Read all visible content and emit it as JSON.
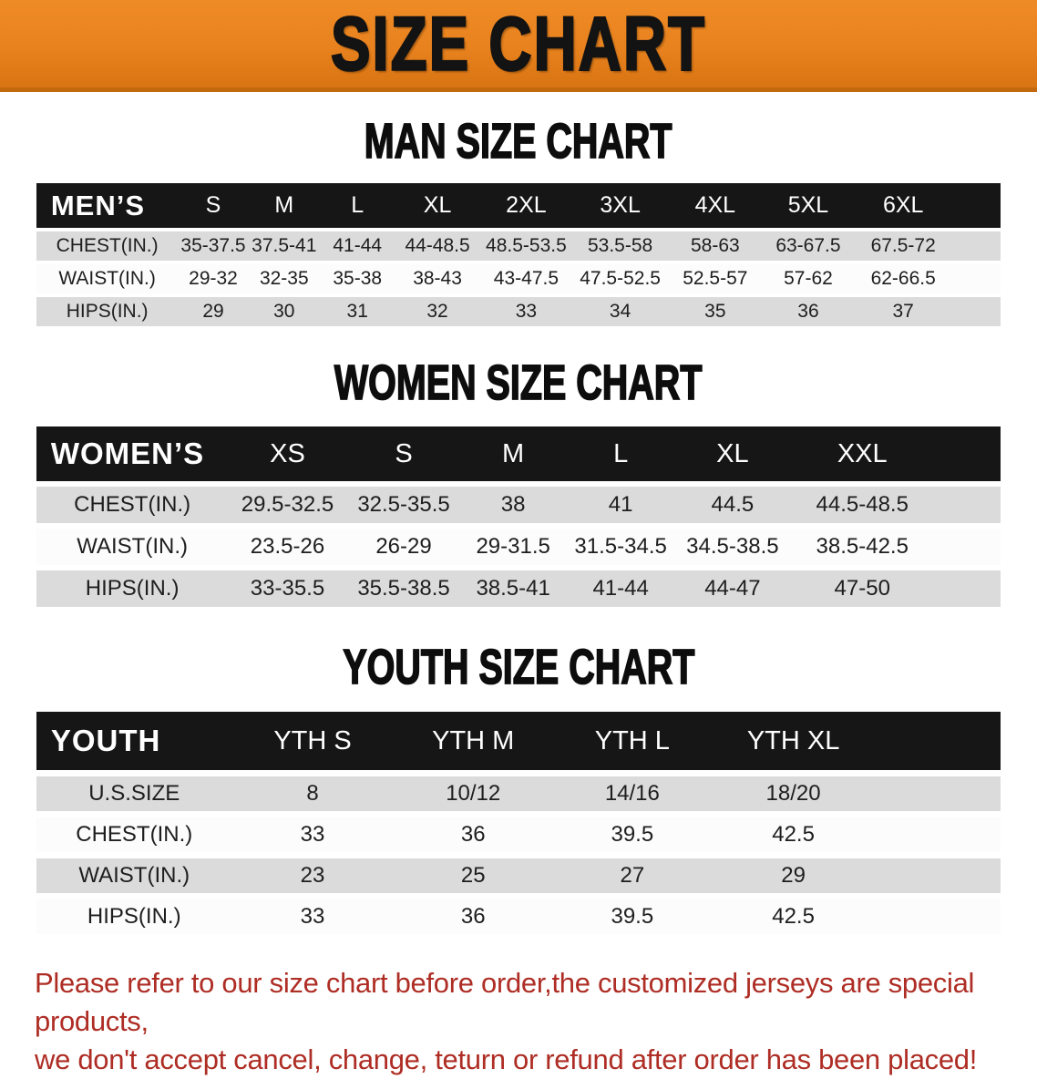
{
  "banner": {
    "title": "SIZE CHART"
  },
  "colors": {
    "banner_orange": "#e8821e",
    "banner_orange_light": "#ef8b26",
    "banner_orange_dark": "#d97413",
    "header_black": "#161616",
    "row_gray": "#dbdbdb",
    "row_white": "#fcfcfc",
    "disclaimer_red": "#ae2d24"
  },
  "sections": [
    {
      "heading": "MAN SIZE CHART",
      "table": {
        "label": "MEN’S",
        "sizes": [
          "S",
          "M",
          "L",
          "XL",
          "2XL",
          "3XL",
          "4XL",
          "5XL",
          "6XL"
        ],
        "rows": [
          {
            "label": "CHEST(IN.)",
            "values": [
              "35-37.5",
              "37.5-41",
              "41-44",
              "44-48.5",
              "48.5-53.5",
              "53.5-58",
              "58-63",
              "63-67.5",
              "67.5-72"
            ]
          },
          {
            "label": "WAIST(IN.)",
            "values": [
              "29-32",
              "32-35",
              "35-38",
              "38-43",
              "43-47.5",
              "47.5-52.5",
              "52.5-57",
              "57-62",
              "62-66.5"
            ]
          },
          {
            "label": "HIPS(IN.)",
            "values": [
              "29",
              "30",
              "31",
              "32",
              "33",
              "34",
              "35",
              "36",
              "37"
            ]
          }
        ]
      }
    },
    {
      "heading": "WOMEN SIZE CHART",
      "table": {
        "label": "WOMEN’S",
        "sizes": [
          "XS",
          "S",
          "M",
          "L",
          "XL",
          "XXL"
        ],
        "rows": [
          {
            "label": "CHEST(IN.)",
            "values": [
              "29.5-32.5",
              "32.5-35.5",
              "38",
              "41",
              "44.5",
              "44.5-48.5"
            ]
          },
          {
            "label": "WAIST(IN.)",
            "values": [
              "23.5-26",
              "26-29",
              "29-31.5",
              "31.5-34.5",
              "34.5-38.5",
              "38.5-42.5"
            ]
          },
          {
            "label": "HIPS(IN.)",
            "values": [
              "33-35.5",
              "35.5-38.5",
              "38.5-41",
              "41-44",
              "44-47",
              "47-50"
            ]
          }
        ]
      }
    },
    {
      "heading": "YOUTH SIZE CHART",
      "table": {
        "label": "YOUTH",
        "sizes": [
          "YTH S",
          "YTH M",
          "YTH L",
          "YTH XL"
        ],
        "rows": [
          {
            "label": "U.S.SIZE",
            "values": [
              "8",
              "10/12",
              "14/16",
              "18/20"
            ]
          },
          {
            "label": "CHEST(IN.)",
            "values": [
              "33",
              "36",
              "39.5",
              "42.5"
            ]
          },
          {
            "label": "WAIST(IN.)",
            "values": [
              "23",
              "25",
              "27",
              "29"
            ]
          },
          {
            "label": "HIPS(IN.)",
            "values": [
              "33",
              "36",
              "39.5",
              "42.5"
            ]
          }
        ]
      }
    }
  ],
  "disclaimer": {
    "line1": "Please refer to our size chart before order,the customized jerseys are special products,",
    "line2": "we don't accept cancel, change, teturn or refund after order has been placed!"
  }
}
